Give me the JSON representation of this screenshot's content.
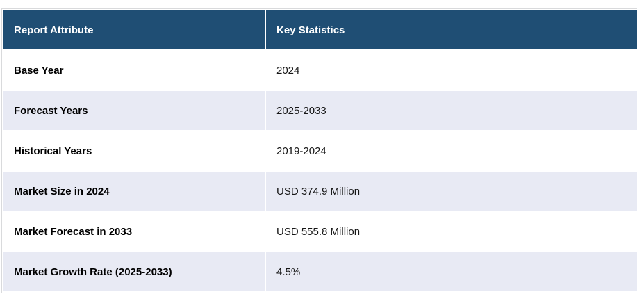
{
  "table": {
    "columns": [
      {
        "label": "Report Attribute"
      },
      {
        "label": "Key Statistics"
      }
    ],
    "rows": [
      {
        "attribute": "Base Year",
        "value": "2024"
      },
      {
        "attribute": "Forecast Years",
        "value": "2025-2033"
      },
      {
        "attribute": "Historical Years",
        "value": "2019-2024"
      },
      {
        "attribute": "Market Size in 2024",
        "value": "USD 374.9 Million"
      },
      {
        "attribute": "Market Forecast in 2033",
        "value": "USD 555.8 Million"
      },
      {
        "attribute": "Market Growth Rate (2025-2033)",
        "value": "4.5%"
      }
    ],
    "colors": {
      "header_bg": "#1f4e74",
      "header_text": "#ffffff",
      "row_bg": "#ffffff",
      "row_alt_bg": "#e8eaf4",
      "border": "#d9dadc",
      "attribute_text": "#000000",
      "value_text": "#161616"
    }
  }
}
